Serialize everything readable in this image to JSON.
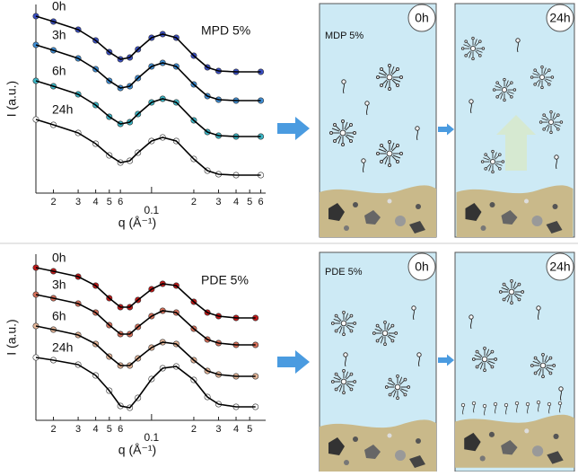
{
  "chart_data": [
    {
      "type": "scatter-fit",
      "title": "MPD 5%",
      "xlabel": "q (Å⁻¹)",
      "ylabel": "I (a.u.)",
      "xscale": "log",
      "xlim": [
        0.015,
        0.65
      ],
      "ylim": [
        0,
        21
      ],
      "xticks": [
        {
          "value": 0.02,
          "label": "2"
        },
        {
          "value": 0.03,
          "label": "3"
        },
        {
          "value": 0.04,
          "label": "4"
        },
        {
          "value": 0.05,
          "label": "5"
        },
        {
          "value": 0.06,
          "label": "6"
        },
        0.1,
        {
          "value": 0.2,
          "label": "2"
        },
        {
          "value": 0.3,
          "label": "3"
        },
        {
          "value": 0.4,
          "label": "4"
        },
        {
          "value": 0.5,
          "label": "5"
        },
        {
          "value": 0.6,
          "label": "6"
        }
      ],
      "x": [
        0.015,
        0.02,
        0.03,
        0.04,
        0.05,
        0.06,
        0.07,
        0.08,
        0.1,
        0.12,
        0.15,
        0.2,
        0.25,
        0.3,
        0.4,
        0.6
      ],
      "series": [
        {
          "name": "0h",
          "color": "#3a4fc4",
          "values": [
            19.7,
            19.1,
            18.2,
            17.0,
            15.7,
            14.9,
            15.1,
            16.0,
            17.3,
            17.7,
            17.3,
            15.3,
            14.0,
            13.6,
            13.5,
            13.5
          ]
        },
        {
          "name": "3h",
          "color": "#3f8fd6",
          "values": [
            16.5,
            15.9,
            15.0,
            13.8,
            12.5,
            11.7,
            11.9,
            12.8,
            14.1,
            14.5,
            14.1,
            12.1,
            10.8,
            10.4,
            10.3,
            10.3
          ]
        },
        {
          "name": "6h",
          "color": "#3bb8c8",
          "values": [
            12.5,
            11.9,
            11.0,
            9.8,
            8.5,
            7.7,
            7.9,
            8.8,
            10.1,
            10.5,
            10.1,
            8.1,
            6.8,
            6.4,
            6.3,
            6.3
          ]
        },
        {
          "name": "24h",
          "color": "#ffffff",
          "values": [
            8.2,
            7.6,
            6.7,
            5.5,
            4.2,
            3.4,
            3.6,
            4.5,
            5.8,
            6.2,
            5.8,
            3.8,
            2.5,
            2.1,
            2.0,
            2.0
          ]
        }
      ]
    },
    {
      "type": "scatter-fit",
      "title": "PDE 5%",
      "xlabel": "q (Å⁻¹)",
      "ylabel": "I (a.u.)",
      "xscale": "log",
      "xlim": [
        0.015,
        0.65
      ],
      "ylim": [
        0,
        18.5
      ],
      "xticks": [
        {
          "value": 0.02,
          "label": "2"
        },
        {
          "value": 0.03,
          "label": "3"
        },
        {
          "value": 0.04,
          "label": "4"
        },
        {
          "value": 0.05,
          "label": "5"
        },
        {
          "value": 0.06,
          "label": "6"
        },
        0.1,
        {
          "value": 0.2,
          "label": "2"
        },
        {
          "value": 0.3,
          "label": "3"
        },
        {
          "value": 0.4,
          "label": "4"
        },
        {
          "value": 0.5,
          "label": "5"
        }
      ],
      "x": [
        0.015,
        0.02,
        0.03,
        0.04,
        0.05,
        0.06,
        0.07,
        0.08,
        0.1,
        0.12,
        0.15,
        0.2,
        0.25,
        0.3,
        0.4,
        0.55
      ],
      "series": [
        {
          "name": "0h",
          "color": "#c01818",
          "values": [
            17.0,
            16.6,
            16.0,
            15.0,
            13.6,
            12.6,
            12.6,
            13.4,
            14.6,
            15.2,
            15.0,
            13.2,
            12.0,
            11.6,
            11.4,
            11.4
          ]
        },
        {
          "name": "3h",
          "color": "#d9705a",
          "values": [
            14.0,
            13.6,
            13.0,
            12.0,
            10.6,
            9.6,
            9.6,
            10.4,
            11.6,
            12.2,
            12.0,
            10.2,
            9.0,
            8.6,
            8.4,
            8.4
          ]
        },
        {
          "name": "6h",
          "color": "#e8b89a",
          "values": [
            10.5,
            10.1,
            9.5,
            8.5,
            7.1,
            6.1,
            6.1,
            6.9,
            8.1,
            8.7,
            8.5,
            6.7,
            5.5,
            5.1,
            4.9,
            4.9
          ]
        },
        {
          "name": "24h",
          "color": "#ffffff",
          "values": [
            7.0,
            6.7,
            6.2,
            5.0,
            3.3,
            1.6,
            1.4,
            2.5,
            4.6,
            5.8,
            6.0,
            4.5,
            2.6,
            1.8,
            1.5,
            1.5
          ]
        }
      ]
    }
  ],
  "diagrams": [
    {
      "label": "MDP 5%",
      "before": "0h",
      "after": "24h"
    },
    {
      "label": "PDE 5%",
      "before": "0h",
      "after": "24h"
    }
  ]
}
